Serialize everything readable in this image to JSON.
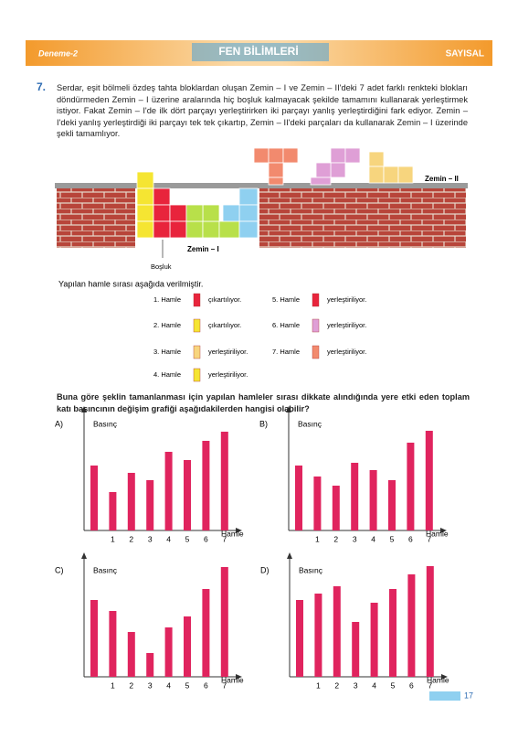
{
  "header": {
    "left": "Deneme-2",
    "title": "FEN BİLİMLERİ",
    "right": "SAYISAL"
  },
  "question": {
    "number": "7.",
    "text": "Serdar, eşit bölmeli özdeş tahta bloklardan oluşan Zemin – I ve Zemin – II'deki 7 adet farklı renkteki blokları döndürmeden Zemin – I üzerine aralarında hiç boşluk kalmayacak şekilde tamamını kullanarak yerleştirmek istiyor. Fakat Zemin – I'de ilk dört parçayı yerleştirirken iki parçayı yanlış yerleştirdiğini fark ediyor. Zemin – I'deki yanlış yerleştirdiği iki parçayı tek tek çıkartıp, Zemin – II'deki parçaları da kullanarak Zemin – I üzerinde şekli tamamlıyor.",
    "prompt": "Buna göre şeklin tamanlanması için yapılan hamleler sırası dikkate alındığında yere etki eden toplam katı basıncının değişim grafiği aşağıdakilerden hangisi olabilir?"
  },
  "figure": {
    "zemin2": "Zemin – II",
    "zemin1": "Zemin – I",
    "gap": "Boşluk"
  },
  "moves": {
    "intro": "Yapılan hamle sırası aşağıda verilmiştir.",
    "items": [
      {
        "label": "1. Hamle",
        "action": "çıkartılıyor."
      },
      {
        "label": "2. Hamle",
        "action": "çıkartılıyor."
      },
      {
        "label": "3. Hamle",
        "action": "yerleştiriliyor."
      },
      {
        "label": "4. Hamle",
        "action": "yerleştiriliyor."
      },
      {
        "label": "5. Hamle",
        "action": "yerleştiriliyor."
      },
      {
        "label": "6. Hamle",
        "action": "yerleştiriliyor."
      },
      {
        "label": "7. Hamle",
        "action": "yerleştiriliyor."
      }
    ]
  },
  "chart_data": [
    {
      "type": "bar",
      "option": "A)",
      "ylabel": "Basınç",
      "xlabel": "Hamle",
      "color": "#e0245e",
      "categories": [
        null,
        "1",
        "2",
        "3",
        "4",
        "5",
        "6",
        "7"
      ],
      "values": [
        71,
        42,
        63,
        55,
        86,
        77,
        98,
        108
      ],
      "ylim": [
        0,
        130
      ]
    },
    {
      "type": "bar",
      "option": "B)",
      "ylabel": "Basınç",
      "xlabel": "Hamle",
      "color": "#e0245e",
      "categories": [
        null,
        "1",
        "2",
        "3",
        "4",
        "5",
        "6",
        "7"
      ],
      "values": [
        71,
        59,
        49,
        74,
        66,
        55,
        96,
        109
      ],
      "ylim": [
        0,
        130
      ]
    },
    {
      "type": "bar",
      "option": "C)",
      "ylabel": "Basınç",
      "xlabel": "Hamle",
      "color": "#e0245e",
      "categories": [
        null,
        "1",
        "2",
        "3",
        "4",
        "5",
        "6",
        "7"
      ],
      "values": [
        84,
        72,
        49,
        26,
        54,
        66,
        96,
        120
      ],
      "ylim": [
        0,
        130
      ]
    },
    {
      "type": "bar",
      "option": "D)",
      "ylabel": "Basınç",
      "xlabel": "Hamle",
      "color": "#e0245e",
      "categories": [
        null,
        "1",
        "2",
        "3",
        "4",
        "5",
        "6",
        "7"
      ],
      "values": [
        84,
        91,
        99,
        60,
        81,
        96,
        112,
        121
      ],
      "ylim": [
        0,
        130
      ]
    }
  ],
  "footer": {
    "page": "17"
  }
}
